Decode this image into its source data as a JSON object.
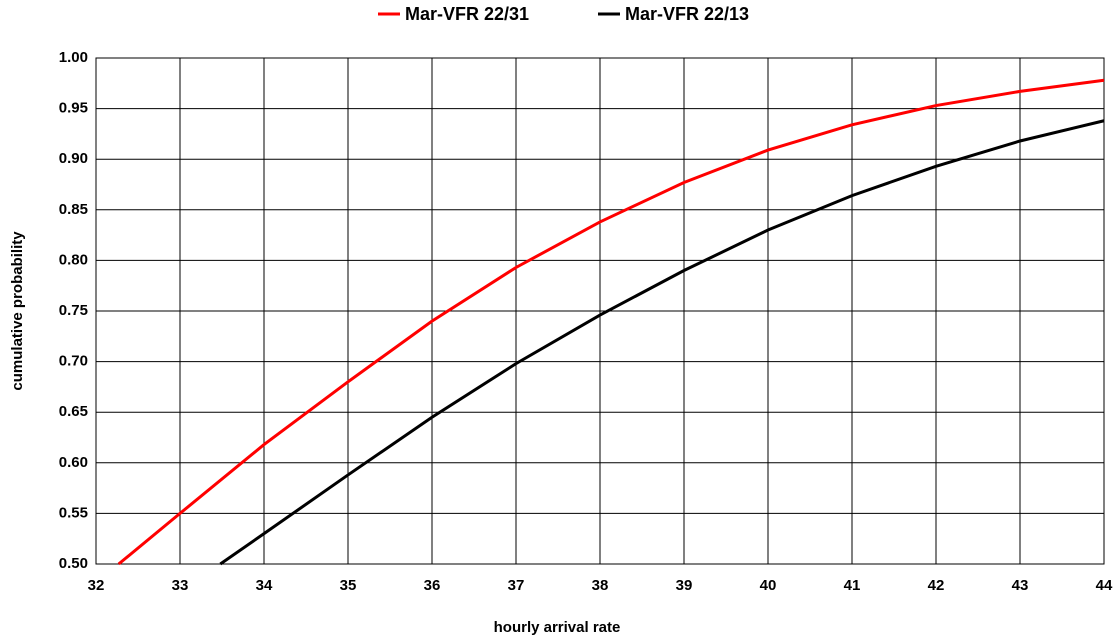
{
  "chart_data": {
    "type": "line",
    "xlabel": "hourly arrival rate",
    "ylabel": "cumulative probability",
    "xlim": [
      32,
      44
    ],
    "xticks": [
      32,
      33,
      34,
      35,
      36,
      37,
      38,
      39,
      40,
      41,
      42,
      43,
      44
    ],
    "ylim": [
      0.5,
      1.0
    ],
    "yticks": [
      {
        "value": 0.5,
        "label": "0.50"
      },
      {
        "value": 0.55,
        "label": "0.55"
      },
      {
        "value": 0.6,
        "label": "0.60"
      },
      {
        "value": 0.65,
        "label": "0.65"
      },
      {
        "value": 0.7,
        "label": "0.70"
      },
      {
        "value": 0.75,
        "label": "0.75"
      },
      {
        "value": 0.8,
        "label": "0.80"
      },
      {
        "value": 0.85,
        "label": "0.85"
      },
      {
        "value": 0.9,
        "label": "0.90"
      },
      {
        "value": 0.95,
        "label": "0.95"
      },
      {
        "value": 1.0,
        "label": "1.00"
      }
    ],
    "grid": true,
    "legend": "top",
    "series": [
      {
        "name": "Mar-VFR 22/31",
        "color": "#ff0000",
        "x": [
          32.27,
          33,
          34,
          35,
          36,
          37,
          38,
          39,
          40,
          41,
          42,
          43,
          44
        ],
        "values": [
          0.5,
          0.55,
          0.618,
          0.68,
          0.74,
          0.793,
          0.838,
          0.877,
          0.909,
          0.934,
          0.953,
          0.967,
          0.978
        ]
      },
      {
        "name": "Mar-VFR 22/13",
        "color": "#000000",
        "x": [
          33.48,
          34,
          35,
          36,
          37,
          38,
          39,
          40,
          41,
          42,
          43,
          44
        ],
        "values": [
          0.5,
          0.53,
          0.588,
          0.645,
          0.698,
          0.746,
          0.79,
          0.83,
          0.864,
          0.893,
          0.918,
          0.938
        ]
      }
    ]
  }
}
